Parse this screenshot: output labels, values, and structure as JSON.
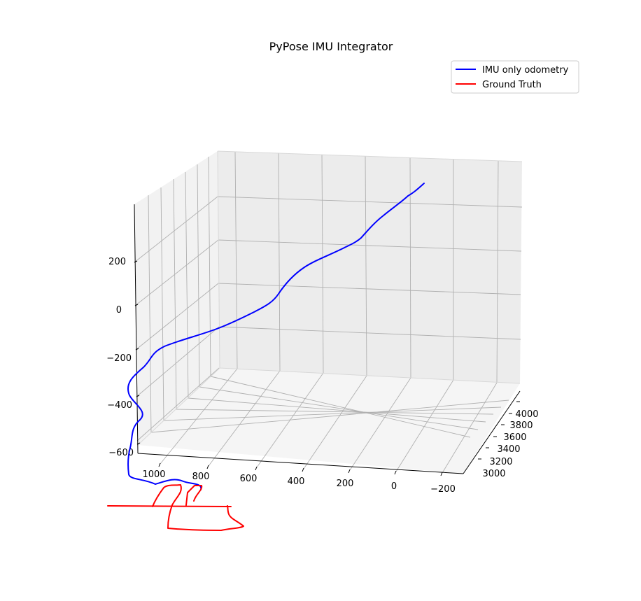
{
  "chart_data": {
    "type": "line",
    "projection": "3d",
    "title": "PyPose IMU Integrator",
    "legend_position": "top-right",
    "grid": true,
    "axes": {
      "x": {
        "ticks": [
          "1000",
          "800",
          "600",
          "400",
          "200",
          "0",
          "−200"
        ]
      },
      "y": {
        "ticks": [
          "3000",
          "3200",
          "3400",
          "3600",
          "3800",
          "4000"
        ]
      },
      "z": {
        "ticks": [
          "200",
          "0",
          "−200",
          "−400",
          "−600"
        ]
      }
    },
    "series": [
      {
        "name": "IMU only odometry",
        "color": "#0000ff"
      },
      {
        "name": "Ground Truth",
        "color": "#ff0000"
      }
    ]
  }
}
